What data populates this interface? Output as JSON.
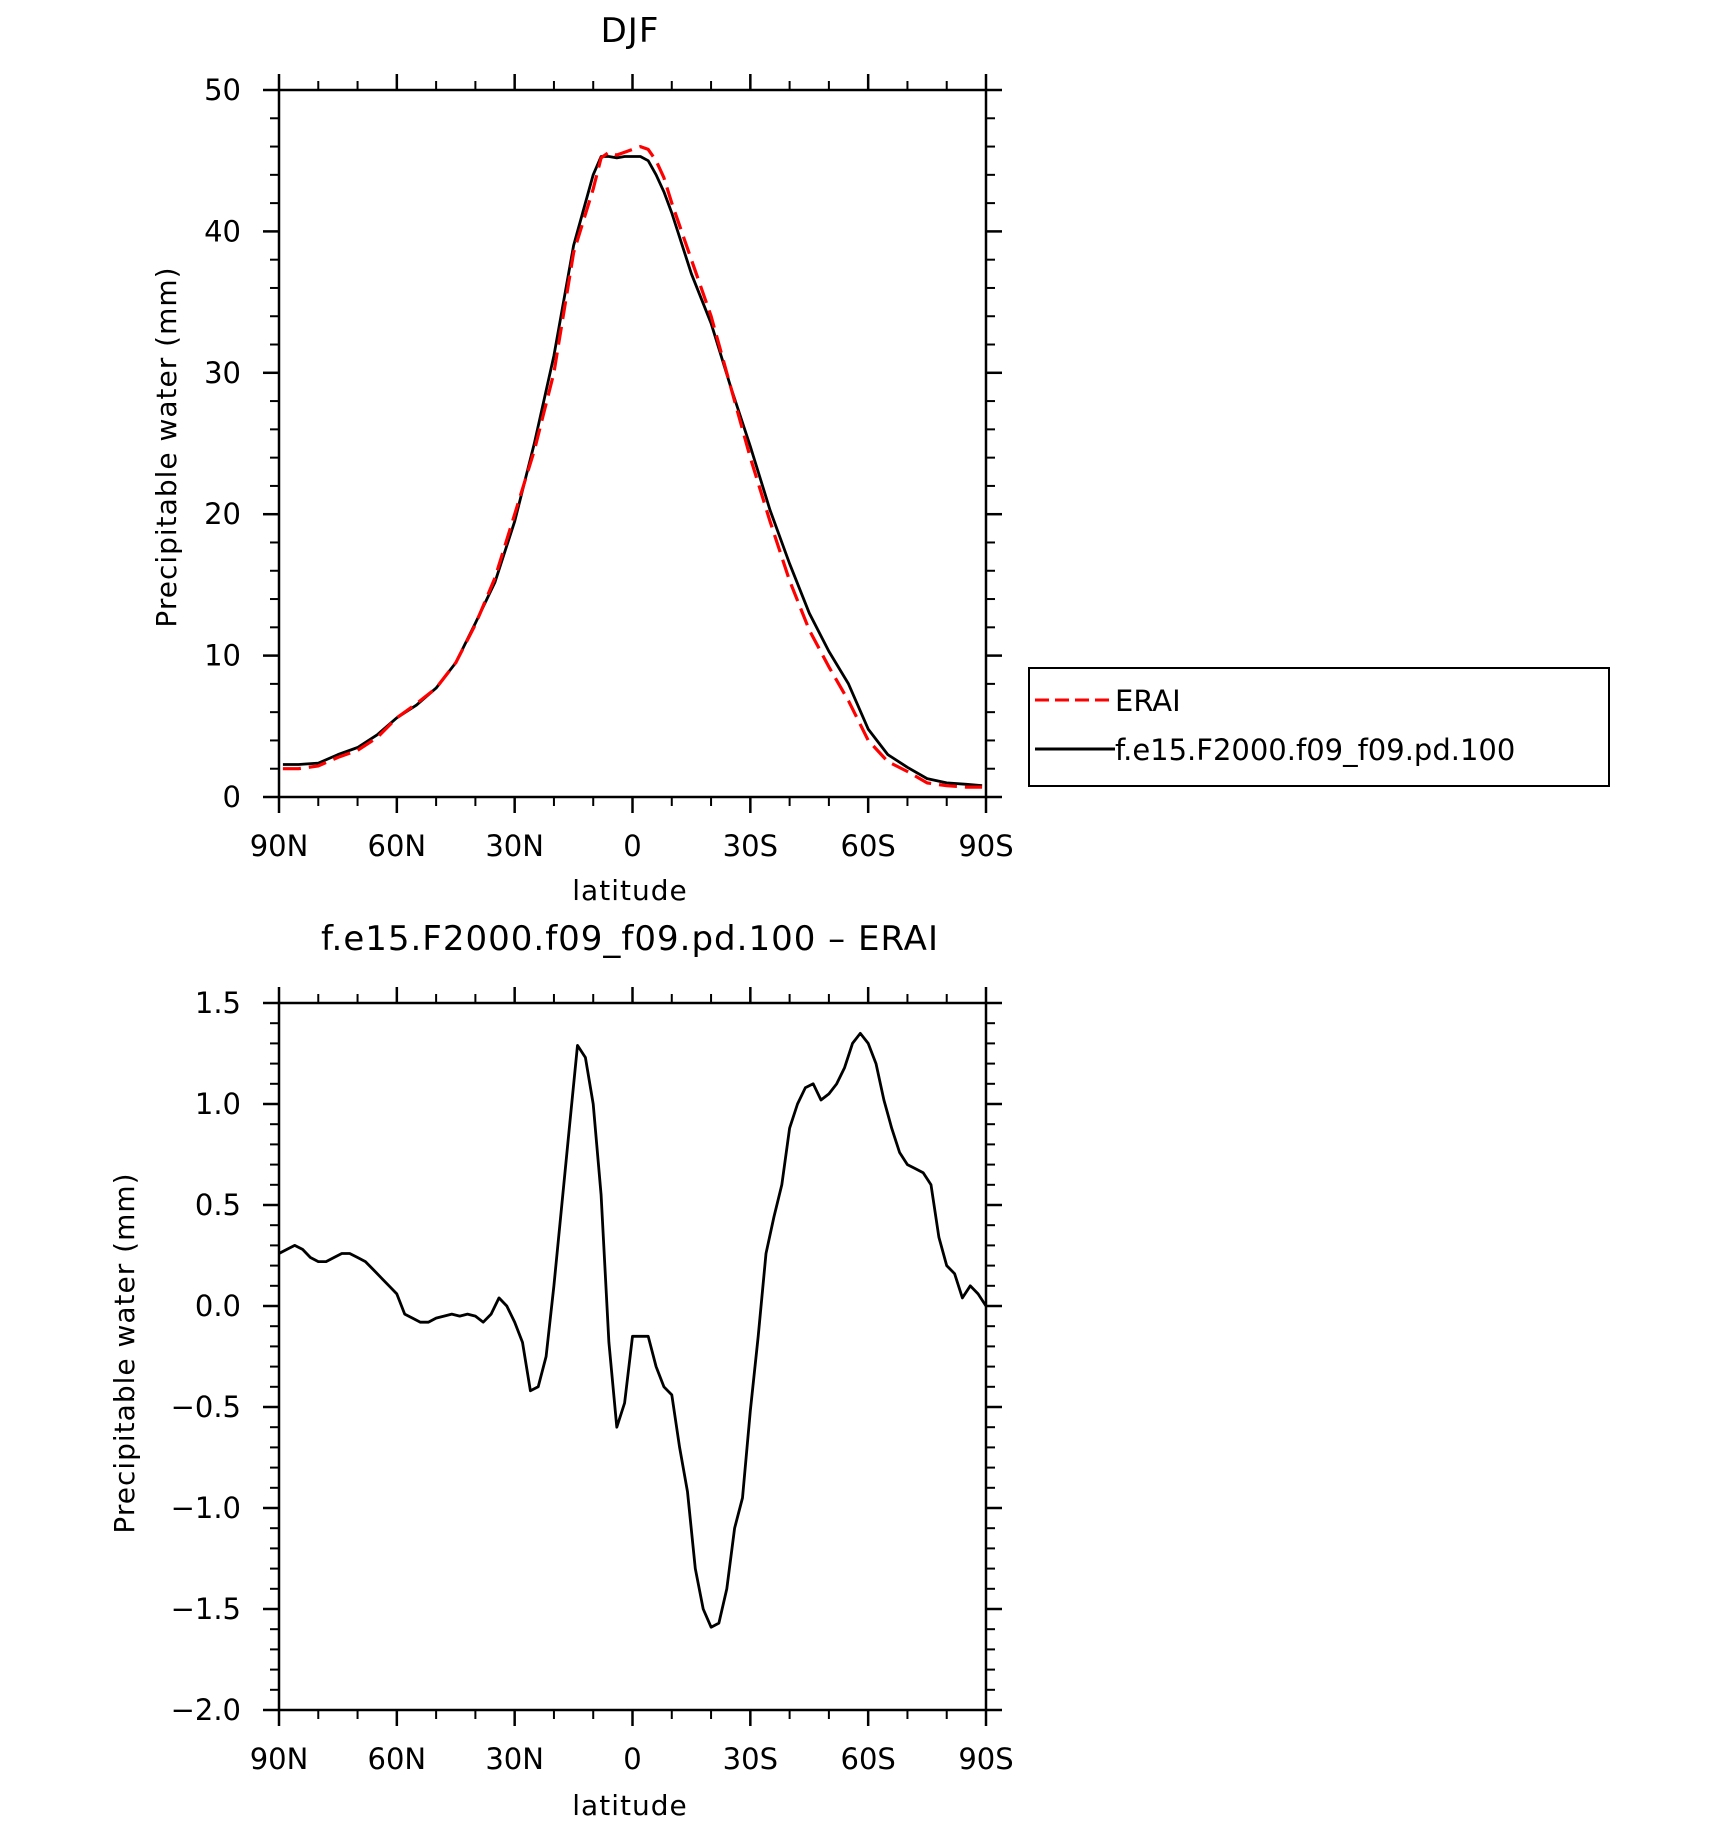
{
  "chart_data": [
    {
      "type": "line",
      "title": "DJF",
      "xlabel": "latitude",
      "ylabel": "Precipitable water (mm)",
      "xlim": [
        90,
        -90
      ],
      "ylim": [
        0,
        50
      ],
      "x_ticks": [
        90,
        60,
        30,
        0,
        -30,
        -60,
        -90
      ],
      "x_tick_labels": [
        "90N",
        "60N",
        "30N",
        "0",
        "30S",
        "60S",
        "90S"
      ],
      "y_ticks": [
        0,
        10,
        20,
        30,
        40,
        50
      ],
      "y_tick_labels": [
        "0",
        "10",
        "20",
        "30",
        "40",
        "50"
      ],
      "grid": false,
      "legend": "right",
      "series": [
        {
          "name": "ERAI",
          "color": "#ff0000",
          "dash": "dashed",
          "x": [
            89,
            85,
            80,
            75,
            70,
            65,
            60,
            55,
            50,
            45,
            40,
            35,
            30,
            25,
            20,
            15,
            10,
            8,
            6,
            4,
            2,
            0,
            -2,
            -4,
            -6,
            -8,
            -10,
            -15,
            -20,
            -25,
            -30,
            -35,
            -40,
            -45,
            -50,
            -55,
            -60,
            -65,
            -70,
            -75,
            -80,
            -85,
            -89
          ],
          "y": [
            2.0,
            2.0,
            2.2,
            2.8,
            3.3,
            4.2,
            5.6,
            6.6,
            7.7,
            9.5,
            12.2,
            15.5,
            20.0,
            24.5,
            30.0,
            38.5,
            43.0,
            45.2,
            45.6,
            45.4,
            45.6,
            45.8,
            46.0,
            45.8,
            45.0,
            43.8,
            42.0,
            38.0,
            34.0,
            29.0,
            24.0,
            19.5,
            15.3,
            11.8,
            9.2,
            6.8,
            4.0,
            2.5,
            1.8,
            1.0,
            0.8,
            0.7,
            0.7
          ]
        },
        {
          "name": "f.e15.F2000.f09_f09.pd.100",
          "color": "#000000",
          "dash": "solid",
          "x": [
            89,
            85,
            80,
            75,
            70,
            65,
            60,
            55,
            50,
            45,
            40,
            35,
            30,
            25,
            20,
            15,
            10,
            8,
            6,
            4,
            2,
            0,
            -2,
            -4,
            -6,
            -8,
            -10,
            -15,
            -20,
            -25,
            -30,
            -35,
            -40,
            -45,
            -50,
            -55,
            -60,
            -65,
            -70,
            -75,
            -80,
            -85,
            -89
          ],
          "y": [
            2.3,
            2.3,
            2.4,
            3.0,
            3.5,
            4.4,
            5.6,
            6.5,
            7.7,
            9.5,
            12.3,
            15.2,
            19.5,
            25.0,
            31.2,
            39.0,
            44.0,
            45.3,
            45.3,
            45.2,
            45.3,
            45.3,
            45.3,
            45.0,
            44.0,
            42.8,
            41.3,
            37.0,
            33.5,
            29.0,
            24.8,
            20.3,
            16.5,
            13.0,
            10.3,
            8.0,
            4.8,
            3.0,
            2.1,
            1.3,
            1.0,
            0.9,
            0.8
          ]
        }
      ]
    },
    {
      "type": "line",
      "title": "f.e15.F2000.f09_f09.pd.100 – ERAI",
      "xlabel": "latitude",
      "ylabel": "Precipitable water (mm)",
      "xlim": [
        90,
        -90
      ],
      "ylim": [
        -2.0,
        1.5
      ],
      "x_ticks": [
        90,
        60,
        30,
        0,
        -30,
        -60,
        -90
      ],
      "x_tick_labels": [
        "90N",
        "60N",
        "30N",
        "0",
        "30S",
        "60S",
        "90S"
      ],
      "y_ticks": [
        -2.0,
        -1.5,
        -1.0,
        -0.5,
        0.0,
        0.5,
        1.0,
        1.5
      ],
      "y_tick_labels": [
        "−2.0",
        "−1.5",
        "−1.0",
        "−0.5",
        "0.0",
        "0.5",
        "1.0",
        "1.5"
      ],
      "grid": false,
      "series": [
        {
          "color": "#000000",
          "dash": "solid",
          "x": [
            90,
            88,
            86,
            84,
            82,
            80,
            78,
            76,
            74,
            72,
            70,
            68,
            66,
            64,
            62,
            60,
            58,
            56,
            54,
            52,
            50,
            48,
            46,
            44,
            42,
            40,
            38,
            36,
            34,
            32,
            30,
            28,
            26,
            24,
            22,
            20,
            18,
            16,
            14,
            12,
            10,
            8,
            6,
            4,
            2,
            0,
            -2,
            -4,
            -6,
            -8,
            -10,
            -12,
            -14,
            -16,
            -18,
            -20,
            -22,
            -24,
            -26,
            -28,
            -30,
            -32,
            -34,
            -36,
            -38,
            -40,
            -42,
            -44,
            -46,
            -48,
            -50,
            -52,
            -54,
            -56,
            -58,
            -60,
            -62,
            -64,
            -66,
            -68,
            -70,
            -72,
            -74,
            -76,
            -78,
            -80,
            -82,
            -84,
            -86,
            -88,
            -90
          ],
          "y": [
            0.26,
            0.28,
            0.3,
            0.28,
            0.24,
            0.22,
            0.22,
            0.24,
            0.26,
            0.26,
            0.24,
            0.22,
            0.18,
            0.14,
            0.1,
            0.06,
            -0.04,
            -0.06,
            -0.08,
            -0.08,
            -0.06,
            -0.05,
            -0.04,
            -0.05,
            -0.04,
            -0.05,
            -0.08,
            -0.04,
            0.04,
            0.0,
            -0.08,
            -0.18,
            -0.42,
            -0.4,
            -0.25,
            0.1,
            0.5,
            0.9,
            1.29,
            1.23,
            1.0,
            0.55,
            -0.18,
            -0.6,
            -0.48,
            -0.15,
            -0.15,
            -0.15,
            -0.3,
            -0.4,
            -0.44,
            -0.7,
            -0.92,
            -1.3,
            -1.5,
            -1.59,
            -1.57,
            -1.4,
            -1.1,
            -0.95,
            -0.52,
            -0.15,
            0.26,
            0.44,
            0.6,
            0.88,
            1.0,
            1.08,
            1.1,
            1.02,
            1.05,
            1.1,
            1.18,
            1.3,
            1.35,
            1.3,
            1.2,
            1.02,
            0.88,
            0.76,
            0.7,
            0.68,
            0.66,
            0.6,
            0.34,
            0.2,
            0.16,
            0.04,
            0.1,
            0.06,
            0.0
          ]
        }
      ]
    }
  ]
}
